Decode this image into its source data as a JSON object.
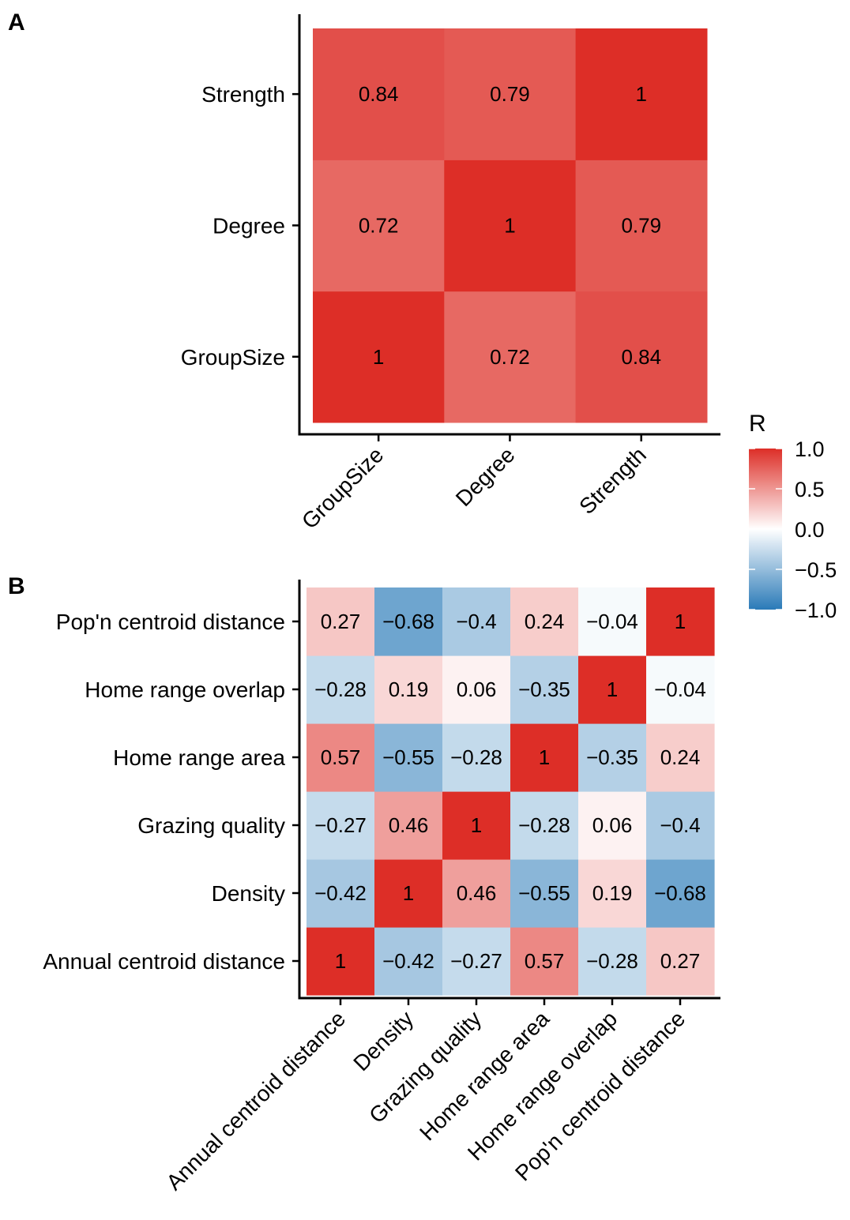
{
  "colors": {
    "pos": "#DD2E27",
    "mid": "#FFFFFF",
    "neg": "#2A7AB8"
  },
  "legend": {
    "title": "R",
    "ticks": [
      1.0,
      0.5,
      0.0,
      -0.5,
      -1.0
    ],
    "tick_labels": [
      "1.0",
      "0.5",
      "0.0",
      "−0.5",
      "−1.0"
    ],
    "range": [
      -1.0,
      1.0
    ]
  },
  "chart_data": [
    {
      "type": "heatmap",
      "panel": "A",
      "x": [
        "GroupSize",
        "Degree",
        "Strength"
      ],
      "y": [
        "GroupSize",
        "Degree",
        "Strength"
      ],
      "values": [
        [
          1,
          0.72,
          0.84
        ],
        [
          0.72,
          1,
          0.79
        ],
        [
          0.84,
          0.79,
          1
        ]
      ],
      "labels": [
        [
          "1",
          "0.72",
          "0.84"
        ],
        [
          "0.72",
          "1",
          "0.79"
        ],
        [
          "0.84",
          "0.79",
          "1"
        ]
      ]
    },
    {
      "type": "heatmap",
      "panel": "B",
      "x": [
        "Annual centroid distance",
        "Density",
        "Grazing quality",
        "Home range area",
        "Home range overlap",
        "Pop'n centroid distance"
      ],
      "y": [
        "Annual centroid distance",
        "Density",
        "Grazing quality",
        "Home range area",
        "Home range overlap",
        "Pop'n centroid distance"
      ],
      "values": [
        [
          1,
          -0.42,
          -0.27,
          0.57,
          -0.28,
          0.27
        ],
        [
          -0.42,
          1,
          0.46,
          -0.55,
          0.19,
          -0.68
        ],
        [
          -0.27,
          0.46,
          1,
          -0.28,
          0.06,
          -0.4
        ],
        [
          0.57,
          -0.55,
          -0.28,
          1,
          -0.35,
          0.24
        ],
        [
          -0.28,
          0.19,
          0.06,
          -0.35,
          1,
          -0.04
        ],
        [
          0.27,
          -0.68,
          -0.4,
          0.24,
          -0.04,
          1
        ]
      ],
      "labels": [
        [
          "1",
          "−0.42",
          "−0.27",
          "0.57",
          "−0.28",
          "0.27"
        ],
        [
          "−0.42",
          "1",
          "0.46",
          "−0.55",
          "0.19",
          "−0.68"
        ],
        [
          "−0.27",
          "0.46",
          "1",
          "−0.28",
          "0.06",
          "−0.4"
        ],
        [
          "0.57",
          "−0.55",
          "−0.28",
          "1",
          "−0.35",
          "0.24"
        ],
        [
          "−0.28",
          "0.19",
          "0.06",
          "−0.35",
          "1",
          "−0.04"
        ],
        [
          "0.27",
          "−0.68",
          "−0.4",
          "0.24",
          "−0.04",
          "1"
        ]
      ]
    }
  ]
}
